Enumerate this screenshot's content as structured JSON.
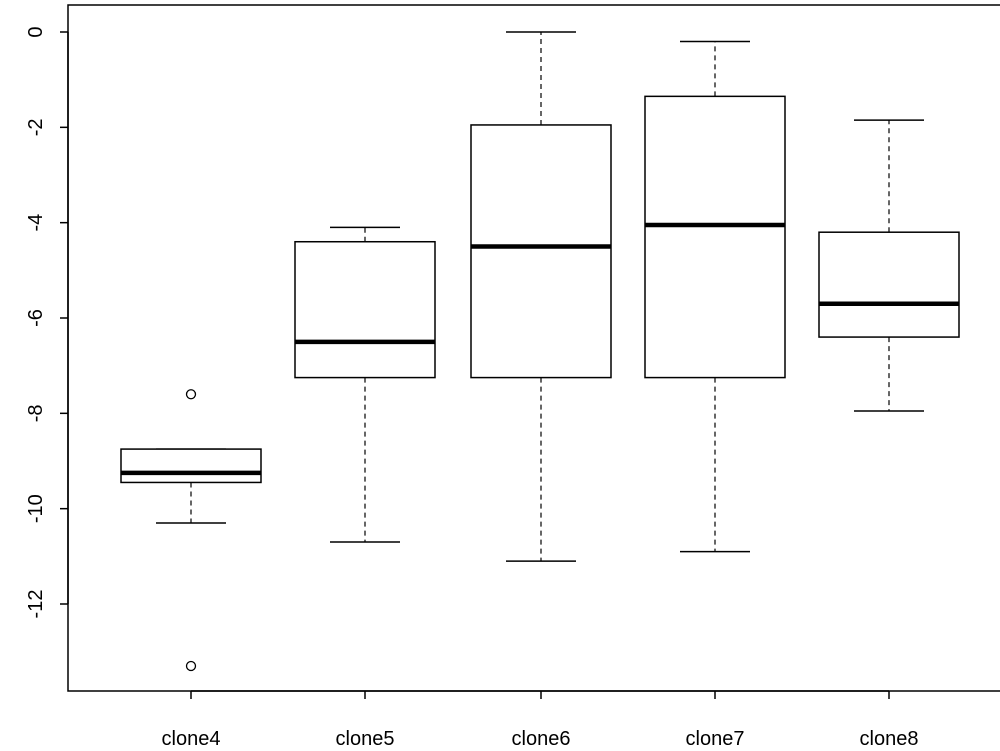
{
  "chart_data": {
    "type": "boxplot",
    "title": "",
    "xlabel": "",
    "ylabel": "",
    "ylim": [
      -13.5,
      0.5
    ],
    "yticks": [
      0,
      -2,
      -4,
      -6,
      -8,
      -10,
      -12
    ],
    "ytick_labels": [
      "0",
      "-2",
      "-4",
      "-6",
      "-8",
      "-10",
      "-12"
    ],
    "categories": [
      "clone4",
      "clone5",
      "clone6",
      "clone7",
      "clone8"
    ],
    "boxes": [
      {
        "name": "clone4",
        "whisker_low": -10.3,
        "q1": -9.45,
        "median": -9.25,
        "q3": -8.75,
        "whisker_high": -8.75,
        "outliers": [
          -7.6,
          -13.3
        ]
      },
      {
        "name": "clone5",
        "whisker_low": -10.7,
        "q1": -7.25,
        "median": -6.5,
        "q3": -4.4,
        "whisker_high": -4.1,
        "outliers": []
      },
      {
        "name": "clone6",
        "whisker_low": -11.1,
        "q1": -7.25,
        "median": -4.5,
        "q3": -1.95,
        "whisker_high": 0.0,
        "outliers": []
      },
      {
        "name": "clone7",
        "whisker_low": -10.9,
        "q1": -7.25,
        "median": -4.05,
        "q3": -1.35,
        "whisker_high": -0.2,
        "outliers": []
      },
      {
        "name": "clone8",
        "whisker_low": -7.95,
        "q1": -6.4,
        "median": -5.7,
        "q3": -4.2,
        "whisker_high": -1.85,
        "outliers": []
      }
    ],
    "grid": false,
    "legend": "none"
  }
}
